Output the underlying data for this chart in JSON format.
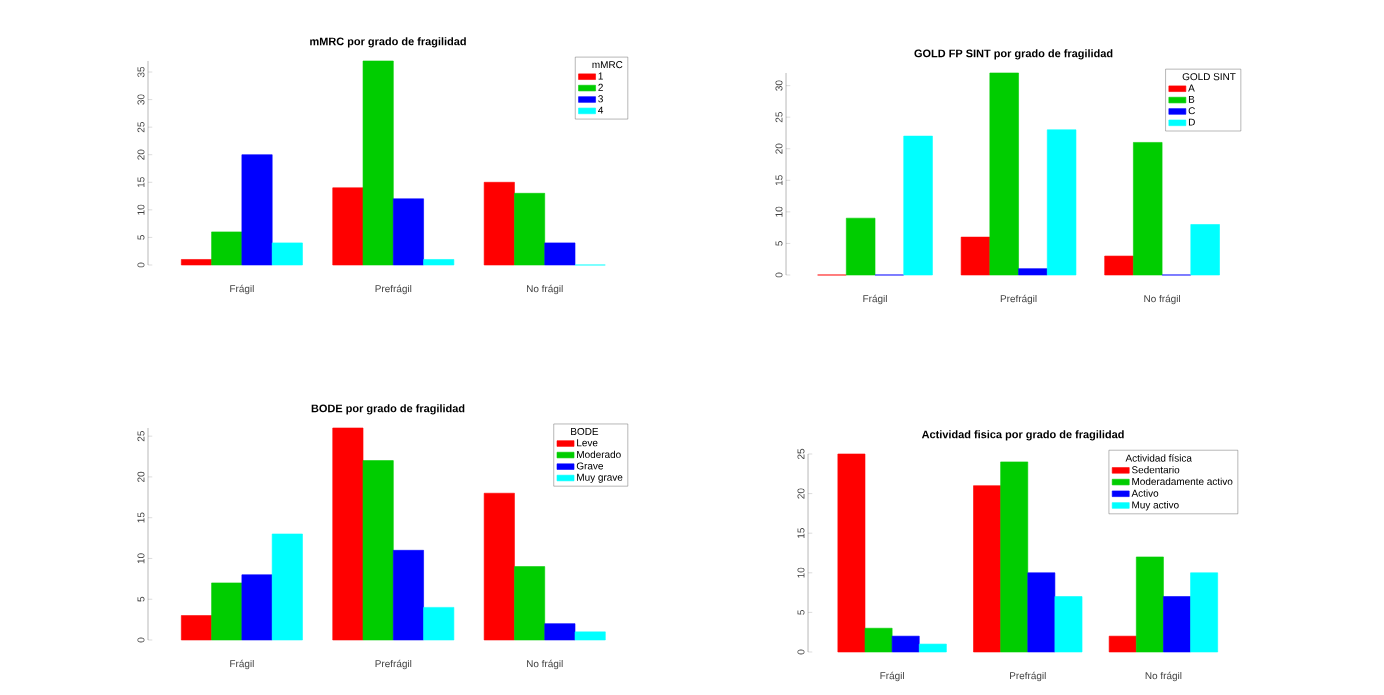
{
  "chart_data": [
    {
      "type": "bar",
      "title": "mMRC por grado de fragilidad",
      "legend_title": "mMRC",
      "legend": "top right",
      "categories": [
        "Frágil",
        "Prefrágil",
        "No frágil"
      ],
      "ylim": [
        0,
        37
      ],
      "yticks": [
        0,
        5,
        10,
        15,
        20,
        25,
        30,
        35
      ],
      "series": [
        {
          "name": "1",
          "color": "#ff0000",
          "values": [
            1,
            14,
            15
          ]
        },
        {
          "name": "2",
          "color": "#00cd00",
          "values": [
            6,
            37,
            13
          ]
        },
        {
          "name": "3",
          "color": "#0000ff",
          "values": [
            20,
            12,
            4
          ]
        },
        {
          "name": "4",
          "color": "#00ffff",
          "values": [
            4,
            1,
            0
          ]
        }
      ]
    },
    {
      "type": "bar",
      "title": "GOLD FP SINT por grado de fragilidad",
      "legend_title": "GOLD SINT",
      "legend": "top right",
      "categories": [
        "Frágil",
        "Prefrágil",
        "No frágil"
      ],
      "ylim": [
        0,
        32
      ],
      "yticks": [
        0,
        5,
        10,
        15,
        20,
        25,
        30
      ],
      "series": [
        {
          "name": "A",
          "color": "#ff0000",
          "values": [
            0,
            6,
            3
          ]
        },
        {
          "name": "B",
          "color": "#00cd00",
          "values": [
            9,
            32,
            21
          ]
        },
        {
          "name": "C",
          "color": "#0000ff",
          "values": [
            0,
            1,
            0
          ]
        },
        {
          "name": "D",
          "color": "#00ffff",
          "values": [
            22,
            23,
            8
          ]
        }
      ]
    },
    {
      "type": "bar",
      "title": "BODE por grado de fragilidad",
      "legend_title": "BODE",
      "legend": "top right",
      "categories": [
        "Frágil",
        "Prefrágil",
        "No frágil"
      ],
      "ylim": [
        0,
        26
      ],
      "yticks": [
        0,
        5,
        10,
        15,
        20,
        25
      ],
      "series": [
        {
          "name": "Leve",
          "color": "#ff0000",
          "values": [
            3,
            26,
            18
          ]
        },
        {
          "name": "Moderado",
          "color": "#00cd00",
          "values": [
            7,
            22,
            9
          ]
        },
        {
          "name": "Grave",
          "color": "#0000ff",
          "values": [
            8,
            11,
            2
          ]
        },
        {
          "name": "Muy grave",
          "color": "#00ffff",
          "values": [
            13,
            4,
            1
          ]
        }
      ]
    },
    {
      "type": "bar",
      "title": "Actividad fisica por grado de fragilidad",
      "legend_title": "Actividad física",
      "legend": "top right",
      "categories": [
        "Frágil",
        "Prefrágil",
        "No frágil"
      ],
      "ylim": [
        0,
        25
      ],
      "yticks": [
        0,
        5,
        10,
        15,
        20,
        25
      ],
      "series": [
        {
          "name": "Sedentario",
          "color": "#ff0000",
          "values": [
            25,
            21,
            2
          ]
        },
        {
          "name": "Moderadamente activo",
          "color": "#00cd00",
          "values": [
            3,
            24,
            12
          ]
        },
        {
          "name": "Activo",
          "color": "#0000ff",
          "values": [
            2,
            10,
            7
          ]
        },
        {
          "name": "Muy activo",
          "color": "#00ffff",
          "values": [
            1,
            7,
            10
          ]
        }
      ]
    }
  ]
}
